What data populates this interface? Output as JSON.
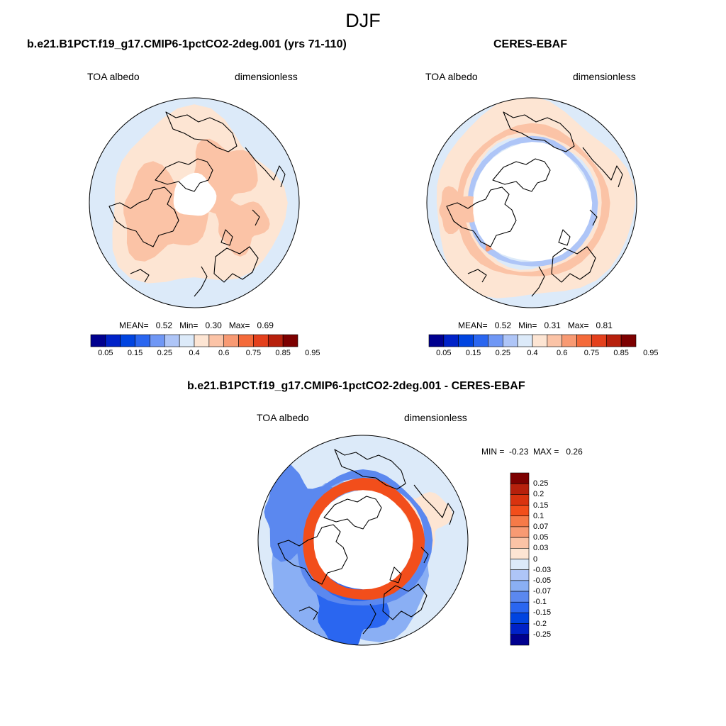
{
  "figure": {
    "title": "DJF"
  },
  "panels": {
    "model": {
      "title": "b.e21.B1PCT.f19_g17.CMIP6-1pctCO2-2deg.001 (yrs 71-110)",
      "left_label": "TOA albedo",
      "right_label": "dimensionless",
      "stats": {
        "mean_label": "MEAN=",
        "mean": "0.52",
        "min_label": "Min=",
        "min": "0.30",
        "max_label": "Max=",
        "max": "0.69"
      }
    },
    "obs": {
      "title": "CERES-EBAF",
      "left_label": "TOA albedo",
      "right_label": "dimensionless",
      "stats": {
        "mean_label": "MEAN=",
        "mean": "0.52",
        "min_label": "Min=",
        "min": "0.31",
        "max_label": "Max=",
        "max": "0.81"
      }
    },
    "diff": {
      "title": "b.e21.B1PCT.f19_g17.CMIP6-1pctCO2-2deg.001 - CERES-EBAF",
      "left_label": "TOA albedo",
      "right_label": "dimensionless",
      "stats": {
        "min_label": "MIN =",
        "min": "-0.23",
        "max_label": "MAX =",
        "max": "0.26"
      }
    }
  },
  "colors": {
    "abs_scale": [
      "#00008f",
      "#0022c8",
      "#0044e0",
      "#2a66f0",
      "#6f97f5",
      "#aec5f7",
      "#dceaf9",
      "#fde5d3",
      "#fbc3a6",
      "#f89a73",
      "#f46a3a",
      "#e4401c",
      "#b7200c",
      "#7d0000"
    ],
    "diff_scale": [
      "#7d0000",
      "#b7200c",
      "#d9330f",
      "#f24e1b",
      "#f67a48",
      "#f89a73",
      "#fbc3a6",
      "#fde5d3",
      "#dceaf9",
      "#aec5f7",
      "#8aaff4",
      "#5b88ef",
      "#2a66f0",
      "#0044e0",
      "#0022c8",
      "#00008f"
    ],
    "hole": "#ffffff"
  },
  "chart_data": [
    {
      "type": "heatmap",
      "projection": "north-polar-stereographic",
      "title": "b.e21.B1PCT.f19_g17.CMIP6-1pctCO2-2deg.001 (yrs 71-110)",
      "variable": "TOA albedo",
      "units": "dimensionless",
      "mean": 0.52,
      "min": 0.3,
      "max": 0.69,
      "colorbar_levels": [
        0.05,
        0.1,
        0.15,
        0.2,
        0.25,
        0.3,
        0.4,
        0.5,
        0.6,
        0.7,
        0.75,
        0.8,
        0.85,
        0.9,
        0.95
      ],
      "colorbar_labels": [
        "0.05",
        "0.15",
        "0.25",
        "0.4",
        "0.6",
        "0.75",
        "0.85",
        "0.95"
      ],
      "field_summary": "ocean mostly 0.4-0.5; high-latitude continents and sea ice 0.5-0.6; no data north of ~80N"
    },
    {
      "type": "heatmap",
      "projection": "north-polar-stereographic",
      "title": "CERES-EBAF",
      "variable": "TOA albedo",
      "units": "dimensionless",
      "mean": 0.52,
      "min": 0.31,
      "max": 0.81,
      "colorbar_levels": [
        0.05,
        0.1,
        0.15,
        0.2,
        0.25,
        0.3,
        0.4,
        0.5,
        0.6,
        0.7,
        0.75,
        0.8,
        0.85,
        0.9,
        0.95
      ],
      "colorbar_labels": [
        "0.05",
        "0.15",
        "0.25",
        "0.4",
        "0.6",
        "0.75",
        "0.85",
        "0.95"
      ],
      "field_summary": "ring of 0.4-0.5 and 0.5-0.6 near the polar-night edge; no data north of ~66N"
    },
    {
      "type": "heatmap",
      "projection": "north-polar-stereographic",
      "title": "b.e21.B1PCT.f19_g17.CMIP6-1pctCO2-2deg.001 - CERES-EBAF",
      "variable": "TOA albedo",
      "units": "dimensionless",
      "min": -0.23,
      "max": 0.26,
      "colorbar_levels": [
        0.25,
        0.2,
        0.15,
        0.1,
        0.07,
        0.05,
        0.03,
        0,
        -0.03,
        -0.05,
        -0.07,
        -0.1,
        -0.15,
        -0.2,
        -0.25
      ],
      "colorbar_labels": [
        "0.25",
        "0.2",
        "0.15",
        "0.1",
        "0.07",
        "0.05",
        "0.03",
        "0",
        "-0.03",
        "-0.05",
        "-0.07",
        "-0.1",
        "-0.15",
        "-0.2",
        "-0.25"
      ],
      "field_summary": "strong positive ring (0.15-0.25) at the polar-night boundary; negative (-0.03 to -0.15) over continents and oceans"
    }
  ]
}
